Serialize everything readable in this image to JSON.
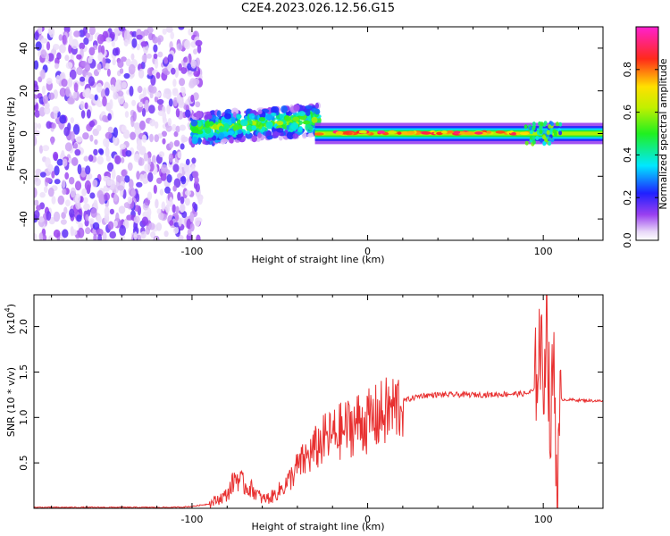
{
  "chart_data": [
    {
      "type": "heatmap",
      "title": "C2E4.2023.026.12.56.G15",
      "xlabel": "Height of straight line (km)",
      "ylabel": "Frequency (Hz)",
      "xlim": [
        -190,
        134
      ],
      "ylim": [
        -50,
        50
      ],
      "x_ticks": [
        "-100",
        "0",
        "100"
      ],
      "x_tick_values": [
        -100,
        0,
        100
      ],
      "y_ticks": [
        "40",
        "20",
        "0",
        "-20",
        "-40"
      ],
      "y_tick_values": [
        40,
        20,
        0,
        -20,
        -40
      ],
      "colorbar": {
        "label": "Normalized spectral amplitude",
        "range": [
          0,
          1
        ],
        "ticks": [
          "0.0",
          "0.2",
          "0.4",
          "0.6",
          "0.8"
        ],
        "tick_values": [
          0.0,
          0.2,
          0.4,
          0.6,
          0.8
        ],
        "colormap": "rainbow (white-purple-blue-cyan-green-yellow-red-magenta)"
      },
      "description_regions": [
        {
          "x_range": [
            -190,
            -100
          ],
          "freq_range": [
            -50,
            50
          ],
          "amplitude": "low (0.05-0.2), broadband noise"
        },
        {
          "x_range": [
            -100,
            -30
          ],
          "freq_center": 3,
          "freq_halfwidth": 6,
          "amplitude": "0.3-0.6"
        },
        {
          "x_range": [
            -30,
            90
          ],
          "freq_center": 0,
          "freq_halfwidth": 2,
          "amplitude": "0.5-0.9"
        },
        {
          "x_range": [
            90,
            134
          ],
          "freq_center": -1,
          "freq_halfwidth": 2,
          "amplitude": "0.4-0.6"
        }
      ]
    },
    {
      "type": "line",
      "xlabel": "Height of straight line (km)",
      "ylabel": "SNR (10 * v/v)",
      "y_scale_label": "(x10",
      "y_scale_exp": "4",
      "y_scale_close": ")",
      "xlim": [
        -190,
        134
      ],
      "ylim": [
        0,
        2.35
      ],
      "x_ticks": [
        "-100",
        "0",
        "100"
      ],
      "x_tick_values": [
        -100,
        0,
        100
      ],
      "y_ticks": [
        "0.5",
        "1.0",
        "1.5",
        "2.0"
      ],
      "y_tick_values": [
        0.5,
        1.0,
        1.5,
        2.0
      ],
      "line_color": "#e83030",
      "x": [
        -190,
        -110,
        -100,
        -90,
        -80,
        -75,
        -70,
        -65,
        -60,
        -55,
        -50,
        -45,
        -40,
        -35,
        -30,
        -25,
        -20,
        -15,
        -10,
        -5,
        0,
        5,
        10,
        15,
        20,
        30,
        40,
        50,
        60,
        70,
        80,
        90,
        95,
        98,
        100,
        102,
        104,
        106,
        108,
        110,
        120,
        134
      ],
      "y": [
        0.01,
        0.01,
        0.02,
        0.05,
        0.15,
        0.35,
        0.25,
        0.2,
        0.1,
        0.12,
        0.2,
        0.3,
        0.45,
        0.55,
        0.65,
        0.75,
        0.8,
        0.85,
        0.9,
        0.95,
        0.95,
        1.0,
        1.05,
        1.1,
        1.18,
        1.24,
        1.25,
        1.25,
        1.25,
        1.25,
        1.26,
        1.26,
        1.3,
        1.9,
        1.3,
        2.3,
        0.7,
        1.8,
        0.1,
        1.2,
        1.19,
        1.18
      ]
    }
  ]
}
